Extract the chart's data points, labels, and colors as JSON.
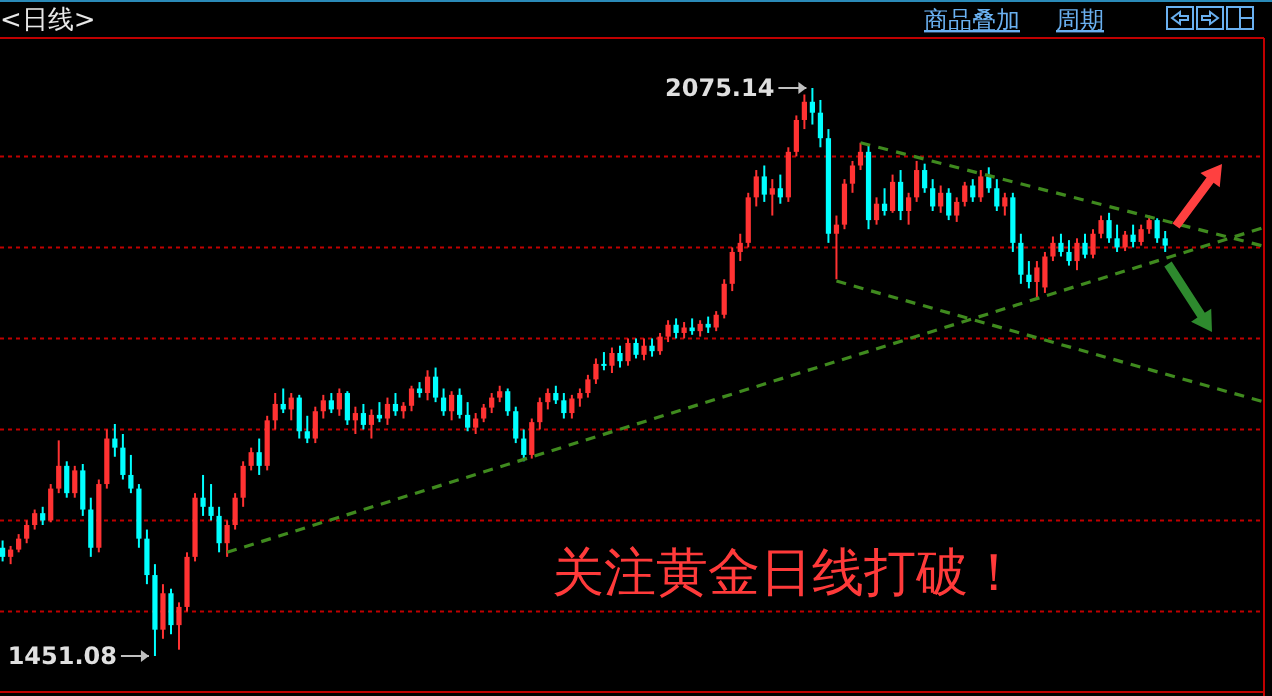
{
  "chart_data": {
    "type": "candlestick",
    "title": "<日线>",
    "annotations": [
      "商品叠加",
      "周期",
      "关注黄金日线打破！",
      "2075.14",
      "1451.08"
    ],
    "colors": [
      "#00ffff",
      "#ff3232",
      "#ff3232",
      "#ff3232",
      "#ff3232",
      "#00ffff",
      "#ff3232",
      "#ff3232",
      "#00ffff",
      "#ff3232",
      "#00ffff",
      "#00ffff",
      "#ff3232",
      "#ff3232",
      "#00ffff",
      "#00ffff",
      "#00ffff",
      "#00ffff",
      "#00ffff",
      "#00ffff",
      "#ff3232",
      "#00ffff",
      "#ff3232",
      "#ff3232",
      "#ff3232",
      "#00ffff",
      "#00ffff",
      "#00ffff",
      "#ff3232",
      "#ff3232",
      "#ff3232",
      "#ff3232",
      "#00ffff",
      "#ff3232",
      "#ff3232",
      "#00ffff",
      "#ff3232",
      "#00ffff",
      "#00ffff",
      "#ff3232",
      "#ff3232",
      "#00ffff",
      "#ff3232",
      "#00ffff",
      "#ff3232",
      "#00ffff",
      "#ff3232",
      "#00ffff",
      "#ff3232",
      "#00ffff",
      "#ff3232",
      "#ff3232",
      "#00ffff",
      "#ff3232",
      "#00ffff",
      "#00ffff",
      "#ff3232",
      "#00ffff",
      "#00ffff",
      "#ff3232",
      "#ff3232",
      "#ff3232",
      "#ff3232",
      "#00ffff",
      "#00ffff",
      "#00ffff",
      "#ff3232",
      "#ff3232",
      "#ff3232",
      "#00ffff",
      "#00ffff",
      "#ff3232",
      "#ff3232",
      "#ff3232",
      "#ff3232",
      "#00ffff",
      "#ff3232",
      "#00ffff",
      "#ff3232",
      "#00ffff",
      "#ff3232",
      "#00ffff",
      "#ff3232",
      "#ff3232",
      "#00ffff",
      "#ff3232",
      "#00ffff",
      "#ff3232",
      "#00ffff",
      "#ff3232",
      "#ff3232",
      "#ff3232",
      "#ff3232",
      "#ff3232",
      "#ff3232",
      "#00ffff",
      "#ff3232",
      "#00ffff",
      "#ff3232",
      "#ff3232",
      "#ff3232",
      "#00ffff",
      "#00ffff",
      "#00ffff",
      "#ff3232",
      "#ff3232",
      "#ff3232",
      "#ff3232",
      "#00ffff",
      "#ff3232",
      "#00ffff",
      "#ff3232",
      "#00ffff",
      "#ff3232",
      "#ff3232",
      "#00ffff",
      "#00ffff",
      "#ff3232",
      "#00ffff",
      "#ff3232",
      "#ff3232",
      "#00ffff",
      "#ff3232",
      "#00ffff",
      "#00ffff",
      "#ff3232",
      "#00ffff",
      "#00ffff",
      "#00ffff",
      "#ff3232",
      "#ff3232",
      "#ff3232",
      "#00ffff",
      "#00ffff",
      "#ff3232",
      "#00ffff",
      "#ff3232",
      "#ff3232",
      "#00ffff",
      "#00ffff",
      "#ff3232",
      "#00ffff",
      "#ff3232",
      "#ff3232",
      "#00ffff",
      "#00ffff",
      null,
      null,
      null,
      null,
      null,
      null,
      null,
      null,
      null,
      null,
      null,
      null
    ],
    "categories": [
      null,
      null,
      null,
      null,
      null,
      null,
      null,
      null,
      null,
      null,
      null,
      null,
      null,
      null,
      null,
      null,
      null,
      null,
      null,
      null,
      null,
      null,
      null,
      null,
      null,
      null,
      null,
      null,
      null,
      null,
      null,
      null,
      null,
      null,
      null,
      null,
      null,
      null,
      null,
      null,
      null,
      null,
      null,
      null,
      null,
      null,
      null,
      null,
      null,
      null,
      null,
      null,
      null,
      null,
      null,
      null,
      null,
      null,
      null,
      null,
      null,
      null,
      null,
      null,
      null,
      null,
      null,
      null,
      null,
      null,
      null,
      null,
      null,
      null,
      null,
      null,
      null,
      null,
      null,
      null,
      null,
      null,
      null,
      null,
      null,
      null,
      null,
      null,
      null,
      null,
      null,
      null,
      null,
      null,
      null,
      null,
      null,
      null,
      null,
      null,
      null,
      null,
      null,
      null,
      null,
      null,
      null,
      null,
      null,
      null,
      null,
      null,
      null,
      null,
      null,
      null,
      null,
      null,
      null,
      null,
      null,
      null,
      null,
      null,
      null,
      null,
      null,
      null,
      null,
      null,
      null,
      null,
      null,
      null,
      null,
      null,
      null,
      null,
      null,
      null,
      null,
      null,
      null,
      null,
      null,
      null,
      null,
      null,
      null,
      null,
      null,
      null,
      null,
      null,
      null,
      null,
      null,
      null
    ],
    "ohlc": [
      [
        1570,
        1578,
        1555,
        1560
      ],
      [
        1560,
        1572,
        1552,
        1568
      ],
      [
        1568,
        1585,
        1565,
        1580
      ],
      [
        1580,
        1600,
        1575,
        1595
      ],
      [
        1595,
        1612,
        1590,
        1608
      ],
      [
        1608,
        1615,
        1595,
        1600
      ],
      [
        1600,
        1640,
        1598,
        1635
      ],
      [
        1635,
        1688,
        1630,
        1660
      ],
      [
        1660,
        1665,
        1625,
        1630
      ],
      [
        1630,
        1660,
        1625,
        1655
      ],
      [
        1655,
        1662,
        1605,
        1612
      ],
      [
        1612,
        1625,
        1560,
        1570
      ],
      [
        1570,
        1645,
        1565,
        1640
      ],
      [
        1640,
        1700,
        1635,
        1690
      ],
      [
        1690,
        1706,
        1670,
        1680
      ],
      [
        1680,
        1695,
        1645,
        1650
      ],
      [
        1650,
        1672,
        1630,
        1635
      ],
      [
        1635,
        1640,
        1570,
        1580
      ],
      [
        1580,
        1590,
        1530,
        1540
      ],
      [
        1540,
        1552,
        1451.08,
        1480
      ],
      [
        1480,
        1530,
        1470,
        1520
      ],
      [
        1520,
        1525,
        1475,
        1485
      ],
      [
        1485,
        1510,
        1458,
        1505
      ],
      [
        1505,
        1565,
        1500,
        1560
      ],
      [
        1560,
        1630,
        1555,
        1625
      ],
      [
        1625,
        1650,
        1605,
        1615
      ],
      [
        1615,
        1640,
        1600,
        1605
      ],
      [
        1605,
        1615,
        1565,
        1575
      ],
      [
        1575,
        1600,
        1560,
        1595
      ],
      [
        1595,
        1630,
        1590,
        1625
      ],
      [
        1625,
        1665,
        1615,
        1660
      ],
      [
        1660,
        1680,
        1655,
        1675
      ],
      [
        1675,
        1690,
        1650,
        1660
      ],
      [
        1660,
        1715,
        1655,
        1710
      ],
      [
        1710,
        1740,
        1700,
        1728
      ],
      [
        1728,
        1745,
        1718,
        1722
      ],
      [
        1722,
        1740,
        1710,
        1735
      ],
      [
        1735,
        1738,
        1690,
        1698
      ],
      [
        1698,
        1715,
        1685,
        1690
      ],
      [
        1690,
        1725,
        1685,
        1720
      ],
      [
        1720,
        1738,
        1712,
        1732
      ],
      [
        1732,
        1740,
        1718,
        1722
      ],
      [
        1722,
        1745,
        1715,
        1740
      ],
      [
        1740,
        1742,
        1705,
        1710
      ],
      [
        1710,
        1725,
        1695,
        1718
      ],
      [
        1718,
        1728,
        1700,
        1705
      ],
      [
        1705,
        1722,
        1690,
        1716
      ],
      [
        1716,
        1730,
        1708,
        1712
      ],
      [
        1712,
        1735,
        1705,
        1728
      ],
      [
        1728,
        1740,
        1715,
        1720
      ],
      [
        1720,
        1730,
        1712,
        1726
      ],
      [
        1726,
        1748,
        1720,
        1745
      ],
      [
        1745,
        1752,
        1735,
        1740
      ],
      [
        1740,
        1765,
        1732,
        1758
      ],
      [
        1758,
        1768,
        1730,
        1735
      ],
      [
        1735,
        1745,
        1715,
        1720
      ],
      [
        1720,
        1742,
        1710,
        1738
      ],
      [
        1738,
        1745,
        1712,
        1716
      ],
      [
        1716,
        1730,
        1698,
        1702
      ],
      [
        1702,
        1718,
        1695,
        1712
      ],
      [
        1712,
        1728,
        1708,
        1724
      ],
      [
        1724,
        1740,
        1718,
        1735
      ],
      [
        1735,
        1748,
        1730,
        1742
      ],
      [
        1742,
        1745,
        1715,
        1720
      ],
      [
        1720,
        1725,
        1685,
        1690
      ],
      [
        1690,
        1700,
        1665,
        1672
      ],
      [
        1672,
        1712,
        1668,
        1708
      ],
      [
        1708,
        1735,
        1700,
        1730
      ],
      [
        1730,
        1745,
        1722,
        1740
      ],
      [
        1740,
        1748,
        1728,
        1732
      ],
      [
        1732,
        1740,
        1712,
        1718
      ],
      [
        1718,
        1738,
        1712,
        1734
      ],
      [
        1734,
        1745,
        1725,
        1740
      ],
      [
        1740,
        1760,
        1735,
        1755
      ],
      [
        1755,
        1778,
        1750,
        1772
      ],
      [
        1772,
        1785,
        1765,
        1770
      ],
      [
        1770,
        1790,
        1762,
        1784
      ],
      [
        1784,
        1792,
        1768,
        1775
      ],
      [
        1775,
        1800,
        1770,
        1795
      ],
      [
        1795,
        1800,
        1778,
        1782
      ],
      [
        1782,
        1800,
        1776,
        1792
      ],
      [
        1792,
        1800,
        1780,
        1786
      ],
      [
        1786,
        1806,
        1782,
        1802
      ],
      [
        1802,
        1820,
        1796,
        1815
      ],
      [
        1815,
        1822,
        1800,
        1806
      ],
      [
        1806,
        1818,
        1800,
        1812
      ],
      [
        1812,
        1822,
        1804,
        1808
      ],
      [
        1808,
        1820,
        1802,
        1816
      ],
      [
        1816,
        1824,
        1806,
        1812
      ],
      [
        1812,
        1830,
        1808,
        1826
      ],
      [
        1826,
        1865,
        1822,
        1860
      ],
      [
        1860,
        1900,
        1852,
        1895
      ],
      [
        1895,
        1915,
        1885,
        1905
      ],
      [
        1905,
        1960,
        1900,
        1955
      ],
      [
        1955,
        1985,
        1945,
        1978
      ],
      [
        1978,
        1990,
        1950,
        1958
      ],
      [
        1958,
        1975,
        1935,
        1965
      ],
      [
        1965,
        1980,
        1948,
        1955
      ],
      [
        1955,
        2010,
        1950,
        2005
      ],
      [
        2005,
        2045,
        2000,
        2040
      ],
      [
        2040,
        2068,
        2030,
        2060
      ],
      [
        2060,
        2075.14,
        2035,
        2048
      ],
      [
        2048,
        2062,
        2010,
        2020
      ],
      [
        2020,
        2030,
        1905,
        1915
      ],
      [
        1915,
        1935,
        1865,
        1925
      ],
      [
        1925,
        1975,
        1920,
        1970
      ],
      [
        1970,
        1995,
        1960,
        1990
      ],
      [
        1990,
        2015,
        1985,
        2005
      ],
      [
        2005,
        2012,
        1920,
        1930
      ],
      [
        1930,
        1955,
        1925,
        1948
      ],
      [
        1948,
        1965,
        1935,
        1940
      ],
      [
        1940,
        1980,
        1938,
        1972
      ],
      [
        1972,
        1985,
        1930,
        1940
      ],
      [
        1940,
        1960,
        1925,
        1955
      ],
      [
        1955,
        1995,
        1950,
        1985
      ],
      [
        1985,
        1992,
        1960,
        1965
      ],
      [
        1965,
        1975,
        1940,
        1945
      ],
      [
        1945,
        1968,
        1938,
        1960
      ],
      [
        1960,
        1965,
        1930,
        1935
      ],
      [
        1935,
        1955,
        1928,
        1950
      ],
      [
        1950,
        1972,
        1945,
        1968
      ],
      [
        1968,
        1975,
        1950,
        1955
      ],
      [
        1955,
        1985,
        1950,
        1978
      ],
      [
        1978,
        1988,
        1960,
        1965
      ],
      [
        1965,
        1975,
        1940,
        1945
      ],
      [
        1945,
        1960,
        1935,
        1955
      ],
      [
        1955,
        1960,
        1895,
        1905
      ],
      [
        1905,
        1915,
        1860,
        1870
      ],
      [
        1870,
        1885,
        1855,
        1862
      ],
      [
        1862,
        1885,
        1843,
        1878
      ],
      [
        1856,
        1895,
        1850,
        1890
      ],
      [
        1890,
        1912,
        1885,
        1905
      ],
      [
        1905,
        1915,
        1890,
        1895
      ],
      [
        1895,
        1908,
        1880,
        1885
      ],
      [
        1885,
        1910,
        1875,
        1905
      ],
      [
        1905,
        1915,
        1888,
        1892
      ],
      [
        1892,
        1920,
        1888,
        1915
      ],
      [
        1915,
        1935,
        1910,
        1930
      ],
      [
        1930,
        1938,
        1905,
        1910
      ],
      [
        1910,
        1925,
        1895,
        1900
      ],
      [
        1900,
        1918,
        1896,
        1914
      ],
      [
        1914,
        1925,
        1900,
        1906
      ],
      [
        1906,
        1925,
        1902,
        1920
      ],
      [
        1920,
        1935,
        1915,
        1930
      ],
      [
        1930,
        1932,
        1905,
        1910
      ],
      [
        1910,
        1918,
        1895,
        1902
      ],
      null,
      null,
      null,
      null,
      null,
      null,
      null,
      null,
      null,
      null,
      null,
      null
    ],
    "series": [
      {
        "type": "line",
        "color": "#3f8a1e",
        "line_style": "dashed",
        "values": [
          null,
          null,
          null,
          null,
          null,
          null,
          null,
          null,
          null,
          null,
          null,
          null,
          null,
          null,
          null,
          null,
          null,
          null,
          null,
          null,
          null,
          null,
          null,
          null,
          null,
          null,
          null,
          null,
          1565,
          null,
          null,
          null,
          null,
          null,
          null,
          null,
          null,
          null,
          null,
          null,
          null,
          null,
          null,
          null,
          null,
          null,
          null,
          null,
          null,
          null,
          null,
          null,
          null,
          null,
          null,
          null,
          null,
          null,
          null,
          null,
          null,
          null,
          null,
          null,
          null,
          null,
          null,
          null,
          null,
          null,
          null,
          null,
          null,
          null,
          null,
          null,
          null,
          null,
          null,
          null,
          null,
          null,
          null,
          null,
          null,
          null,
          null,
          null,
          null,
          null,
          null,
          null,
          null,
          null,
          null,
          null,
          null,
          null,
          null,
          null,
          null,
          null,
          null,
          null,
          null,
          null,
          null,
          null,
          null,
          null,
          null,
          null,
          null,
          null,
          null,
          null,
          null,
          null,
          null,
          null,
          null,
          null,
          null,
          null,
          null,
          null,
          null,
          null,
          null,
          null,
          null,
          null,
          null,
          null,
          null,
          null,
          null,
          null,
          null,
          null,
          null,
          null,
          null,
          null,
          null,
          null,
          null,
          null,
          null,
          null,
          null,
          null,
          null,
          null,
          null,
          null,
          null,
          1921
        ]
      },
      {
        "type": "line",
        "color": "#3f8a1e",
        "line_style": "dashed",
        "values": [
          null,
          null,
          null,
          null,
          null,
          null,
          null,
          null,
          null,
          null,
          null,
          null,
          null,
          null,
          null,
          null,
          null,
          null,
          null,
          null,
          null,
          null,
          null,
          null,
          null,
          null,
          null,
          null,
          null,
          null,
          null,
          null,
          null,
          null,
          null,
          null,
          null,
          null,
          null,
          null,
          null,
          null,
          null,
          null,
          null,
          null,
          null,
          null,
          null,
          null,
          null,
          null,
          null,
          null,
          null,
          null,
          null,
          null,
          null,
          null,
          null,
          null,
          null,
          null,
          null,
          null,
          null,
          null,
          null,
          null,
          null,
          null,
          null,
          null,
          null,
          null,
          null,
          null,
          null,
          null,
          null,
          null,
          null,
          null,
          null,
          null,
          null,
          null,
          null,
          null,
          null,
          null,
          null,
          null,
          null,
          null,
          null,
          null,
          null,
          null,
          null,
          null,
          null,
          null,
          null,
          null,
          null,
          2015,
          null,
          null,
          null,
          null,
          null,
          null,
          null,
          null,
          null,
          null,
          null,
          null,
          null,
          null,
          null,
          null,
          null,
          null,
          null,
          null,
          null,
          null,
          null,
          null,
          null,
          null,
          null,
          null,
          null,
          null,
          null,
          null,
          null,
          null,
          null,
          null,
          null,
          null,
          null,
          null,
          null,
          null,
          null,
          null,
          null,
          null,
          null,
          null,
          null,
          1902
        ]
      },
      {
        "type": "line",
        "color": "#3f8a1e",
        "line_style": "dashed",
        "values": [
          null,
          null,
          null,
          null,
          null,
          null,
          null,
          null,
          null,
          null,
          null,
          null,
          null,
          null,
          null,
          null,
          null,
          null,
          null,
          null,
          null,
          null,
          null,
          null,
          null,
          null,
          null,
          null,
          null,
          null,
          null,
          null,
          null,
          null,
          null,
          null,
          null,
          null,
          null,
          null,
          null,
          null,
          null,
          null,
          null,
          null,
          null,
          null,
          null,
          null,
          null,
          null,
          null,
          null,
          null,
          null,
          null,
          null,
          null,
          null,
          null,
          null,
          null,
          null,
          null,
          null,
          null,
          null,
          null,
          null,
          null,
          null,
          null,
          null,
          null,
          null,
          null,
          null,
          null,
          null,
          null,
          null,
          null,
          null,
          null,
          null,
          null,
          null,
          null,
          null,
          null,
          null,
          null,
          null,
          null,
          null,
          null,
          null,
          null,
          null,
          null,
          null,
          null,
          null,
          1863,
          null,
          null,
          null,
          null,
          null,
          null,
          null,
          null,
          null,
          null,
          null,
          null,
          null,
          null,
          null,
          null,
          null,
          null,
          null,
          null,
          null,
          null,
          null,
          null,
          null,
          null,
          null,
          null,
          null,
          null,
          null,
          null,
          null,
          null,
          null,
          null,
          null,
          null,
          null,
          null,
          null,
          null,
          null,
          null,
          null,
          null,
          null,
          null,
          null,
          null,
          null,
          null,
          1731
        ]
      }
    ],
    "ref_lines": [
      {
        "axis": "y",
        "value": 2000,
        "color": "#c00000",
        "line_style": "dotted"
      },
      {
        "axis": "y",
        "value": 1900,
        "color": "#c00000",
        "line_style": "dotted"
      },
      {
        "axis": "y",
        "value": 1800,
        "color": "#c00000",
        "line_style": "dotted"
      },
      {
        "axis": "y",
        "value": 1700,
        "color": "#c00000",
        "line_style": "dotted"
      },
      {
        "axis": "y",
        "value": 1600,
        "color": "#c00000",
        "line_style": "dotted"
      },
      {
        "axis": "y",
        "value": 1500,
        "color": "#c00000",
        "line_style": "dotted"
      }
    ]
  }
}
